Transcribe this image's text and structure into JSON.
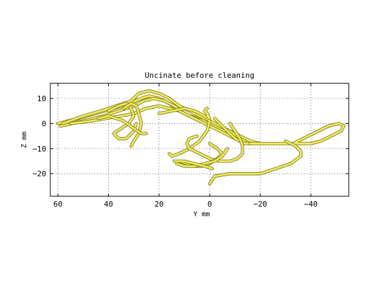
{
  "chart_data": {
    "type": "line",
    "title": "Uncinate before cleaning",
    "xlabel": "Y mm",
    "ylabel": "Z mm",
    "x_reversed": true,
    "xlim": [
      63,
      -55
    ],
    "ylim": [
      -29,
      16
    ],
    "x_ticks": [
      60,
      40,
      20,
      0,
      -20,
      -40
    ],
    "x_tick_labels": [
      "60",
      "40",
      "20",
      "0",
      "−20",
      "−40"
    ],
    "y_ticks": [
      10,
      0,
      -10,
      -20
    ],
    "y_tick_labels": [
      "10",
      "0",
      "−10",
      "−20"
    ],
    "grid": "dotted",
    "series_color": "#e4e046",
    "series": [
      {
        "x": [
          60,
          52,
          45,
          38,
          32,
          27,
          24,
          20,
          16,
          12,
          8,
          4,
          0,
          -4,
          -8,
          -12,
          -16,
          -20
        ],
        "y": [
          0,
          2,
          4,
          6,
          8,
          10,
          11,
          10,
          8,
          5,
          3,
          2,
          0,
          -2,
          -3,
          -5,
          -7,
          -8
        ]
      },
      {
        "x": [
          59,
          50,
          42,
          36,
          30,
          26,
          22,
          18,
          14,
          10,
          6,
          2,
          -2,
          -6,
          -10,
          -14
        ],
        "y": [
          -1,
          1,
          3,
          5,
          7,
          9,
          10,
          9,
          7,
          4,
          2,
          1,
          -1,
          -3,
          -5,
          -7
        ]
      },
      {
        "x": [
          58,
          50,
          43,
          37,
          31,
          28,
          24,
          20,
          16,
          12,
          8,
          4,
          0,
          -4,
          -8,
          -12
        ],
        "y": [
          0,
          3,
          5,
          7,
          9,
          12,
          13,
          12,
          10,
          7,
          5,
          3,
          1,
          -1,
          -3,
          -6
        ]
      },
      {
        "x": [
          55,
          47,
          41,
          35,
          30,
          25,
          20,
          16,
          12,
          8,
          4,
          0,
          -4,
          -8,
          -12
        ],
        "y": [
          0,
          1,
          2,
          3,
          4,
          6,
          7,
          6,
          5,
          3,
          1,
          -1,
          -3,
          -5,
          -7
        ]
      },
      {
        "x": [
          40,
          36,
          33,
          31,
          30,
          32,
          35,
          38,
          36,
          33,
          30,
          29
        ],
        "y": [
          5,
          7,
          8,
          6,
          3,
          0,
          -2,
          -4,
          -6,
          -6,
          -3,
          0
        ]
      },
      {
        "x": [
          34,
          31,
          29,
          28,
          27,
          28,
          30,
          31
        ],
        "y": [
          6,
          8,
          7,
          4,
          0,
          -4,
          -7,
          -9
        ]
      },
      {
        "x": [
          44,
          40,
          37,
          34,
          30,
          27,
          25
        ],
        "y": [
          2,
          3,
          2,
          1,
          -2,
          -4,
          -4
        ]
      },
      {
        "x": [
          20,
          15,
          10,
          6,
          2,
          0,
          1,
          4,
          8,
          12,
          15,
          16
        ],
        "y": [
          4,
          5,
          6,
          5,
          3,
          1,
          -3,
          -7,
          -10,
          -12,
          -13,
          -12
        ]
      },
      {
        "x": [
          -2,
          -4,
          -6,
          -8,
          -10,
          -12,
          -14,
          -16
        ],
        "y": [
          2,
          0,
          -2,
          -4,
          -6,
          -7,
          -8,
          -8
        ]
      },
      {
        "x": [
          -8,
          -10,
          -12,
          -13,
          -13,
          -11,
          -8,
          -4,
          0,
          4,
          8,
          9,
          8,
          5
        ],
        "y": [
          0,
          -3,
          -6,
          -9,
          -12,
          -14,
          -15,
          -15,
          -14,
          -12,
          -10,
          -8,
          -6,
          -5
        ]
      },
      {
        "x": [
          12,
          9,
          6,
          3,
          0,
          -3,
          -5,
          -3,
          0
        ],
        "y": [
          -15,
          -16,
          -17,
          -17,
          -16,
          -14,
          -12,
          -10,
          -8
        ]
      },
      {
        "x": [
          13,
          10,
          6,
          2,
          -2,
          -5,
          -7
        ],
        "y": [
          -16,
          -17,
          -17,
          -16,
          -15,
          -13,
          -10
        ]
      },
      {
        "x": [
          14,
          10,
          6,
          2,
          -1
        ],
        "y": [
          -15,
          -15,
          -16,
          -17,
          -18
        ]
      },
      {
        "x": [
          1,
          0,
          1,
          2,
          1
        ],
        "y": [
          3,
          2,
          4,
          5,
          6
        ]
      },
      {
        "x": [
          -16,
          -20,
          -26,
          -32,
          -36,
          -40,
          -44,
          -48,
          -52,
          -53,
          -51,
          -47,
          -43,
          -39,
          -35,
          -33
        ],
        "y": [
          -8,
          -8,
          -8,
          -8,
          -8,
          -8,
          -7,
          -5,
          -3,
          -1,
          0,
          -1,
          -3,
          -5,
          -7,
          -8
        ]
      },
      {
        "x": [
          -30,
          -34,
          -36,
          -36,
          -32,
          -26,
          -20,
          -14,
          -8,
          -2,
          0
        ],
        "y": [
          -7,
          -9,
          -11,
          -13,
          -16,
          -18,
          -20,
          -20,
          -20,
          -21,
          -24
        ]
      }
    ]
  }
}
